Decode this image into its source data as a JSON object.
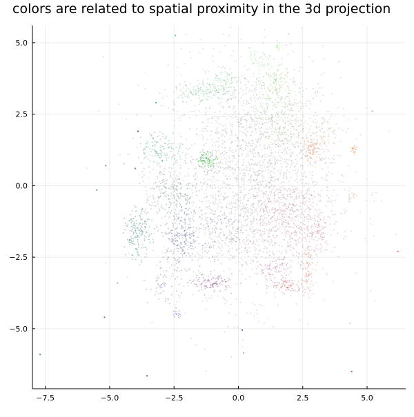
{
  "chart_data": {
    "type": "scatter",
    "title": "colors are related to spatial proximity in the 3d projection",
    "xlabel": "",
    "ylabel": "",
    "xlim": [
      -8.0,
      6.5
    ],
    "ylim": [
      -7.1,
      5.6
    ],
    "xticks": [
      -7.5,
      -5.0,
      -2.5,
      0.0,
      2.5,
      5.0
    ],
    "xtick_labels": [
      "−7.5",
      "−5.0",
      "−2.5",
      "0.0",
      "2.5",
      "5.0"
    ],
    "yticks": [
      -5.0,
      -2.5,
      0.0,
      2.5,
      5.0
    ],
    "ytick_labels": [
      "−5.0",
      "−2.5",
      "0.0",
      "2.5",
      "5.0"
    ],
    "grid": true,
    "legend": "none",
    "point_colors_note": "colored by 3d projection",
    "clusters": [
      {
        "x": 0.5,
        "y": 0.3,
        "sx": 1.7,
        "sy": 2.0,
        "n": 2200,
        "color": "#a8a2b0"
      },
      {
        "x": 1.5,
        "y": 2.4,
        "sx": 0.6,
        "sy": 0.7,
        "n": 350,
        "color": "#9fc590"
      },
      {
        "x": 1.8,
        "y": -1.2,
        "sx": 0.8,
        "sy": 0.8,
        "n": 450,
        "color": "#c7829e"
      },
      {
        "x": -2.2,
        "y": -1.8,
        "sx": 0.4,
        "sy": 0.5,
        "n": 260,
        "color": "#5c6f99"
      },
      {
        "x": -2.6,
        "y": -0.3,
        "sx": 0.5,
        "sy": 0.5,
        "n": 220,
        "color": "#6a8f7c"
      },
      {
        "x": -3.9,
        "y": -1.7,
        "sx": 0.25,
        "sy": 0.4,
        "n": 150,
        "color": "#2f7a70"
      },
      {
        "x": -3.0,
        "y": 1.3,
        "sx": 0.5,
        "sy": 0.3,
        "n": 120,
        "color": "#3fa07a"
      },
      {
        "x": -1.2,
        "y": 0.9,
        "sx": 0.2,
        "sy": 0.15,
        "n": 110,
        "color": "#39a83c"
      },
      {
        "x": -1.4,
        "y": 3.3,
        "sx": 0.6,
        "sy": 0.2,
        "n": 110,
        "color": "#63c07c"
      },
      {
        "x": -0.6,
        "y": 3.6,
        "sx": 0.3,
        "sy": 0.25,
        "n": 80,
        "color": "#7fd08a"
      },
      {
        "x": 1.4,
        "y": 3.6,
        "sx": 0.4,
        "sy": 0.3,
        "n": 90,
        "color": "#8fd66b"
      },
      {
        "x": 0.7,
        "y": 4.3,
        "sx": 0.25,
        "sy": 0.2,
        "n": 40,
        "color": "#7fe07a"
      },
      {
        "x": 1.5,
        "y": 4.85,
        "sx": 0.05,
        "sy": 0.05,
        "n": 12,
        "color": "#90ef70"
      },
      {
        "x": 2.9,
        "y": 1.3,
        "sx": 0.25,
        "sy": 0.25,
        "n": 130,
        "color": "#e39a6e"
      },
      {
        "x": 4.5,
        "y": 1.25,
        "sx": 0.08,
        "sy": 0.1,
        "n": 22,
        "color": "#e7914c"
      },
      {
        "x": 3.4,
        "y": 2.0,
        "sx": 0.3,
        "sy": 0.25,
        "n": 40,
        "color": "#c9a56e"
      },
      {
        "x": 2.7,
        "y": -2.8,
        "sx": 0.12,
        "sy": 0.6,
        "n": 90,
        "color": "#de8a76"
      },
      {
        "x": 1.9,
        "y": -3.5,
        "sx": 0.3,
        "sy": 0.12,
        "n": 60,
        "color": "#c44a4a"
      },
      {
        "x": -1.0,
        "y": -3.4,
        "sx": 0.4,
        "sy": 0.15,
        "n": 110,
        "color": "#8a4a8f"
      },
      {
        "x": 1.4,
        "y": -2.9,
        "sx": 0.3,
        "sy": 0.2,
        "n": 60,
        "color": "#b45aa0"
      },
      {
        "x": -2.9,
        "y": -3.5,
        "sx": 0.3,
        "sy": 0.3,
        "n": 50,
        "color": "#7a5cb0"
      },
      {
        "x": -2.4,
        "y": -4.5,
        "sx": 0.08,
        "sy": 0.08,
        "n": 14,
        "color": "#6a3fb0"
      },
      {
        "x": 3.1,
        "y": -1.7,
        "sx": 0.25,
        "sy": 0.3,
        "n": 60,
        "color": "#c86e90"
      },
      {
        "x": 4.4,
        "y": -0.35,
        "sx": 0.12,
        "sy": 0.1,
        "n": 16,
        "color": "#d2aa8a"
      },
      {
        "x": -0.6,
        "y": -1.6,
        "sx": 0.5,
        "sy": 0.5,
        "n": 140,
        "color": "#8a7fa8"
      }
    ],
    "outliers": [
      {
        "x": -7.7,
        "y": -5.9,
        "color": "#2a8a8a"
      },
      {
        "x": -3.55,
        "y": -6.65,
        "color": "#4a3aa0"
      },
      {
        "x": -5.2,
        "y": -4.6,
        "color": "#5a58b0"
      },
      {
        "x": -5.5,
        "y": -0.15,
        "color": "#2a9aa0"
      },
      {
        "x": -5.15,
        "y": 0.7,
        "color": "#3a9ab0"
      },
      {
        "x": 0.15,
        "y": -5.05,
        "color": "#6a4ab0"
      },
      {
        "x": 0.2,
        "y": -5.85,
        "color": "#b0a0c0"
      },
      {
        "x": 4.4,
        "y": -6.5,
        "color": "#c83a6a"
      },
      {
        "x": 6.2,
        "y": -2.3,
        "color": "#e05a30"
      },
      {
        "x": 5.2,
        "y": 2.6,
        "color": "#b0c0a0"
      },
      {
        "x": -2.45,
        "y": 5.25,
        "color": "#40d0b0"
      },
      {
        "x": 1.95,
        "y": 5.3,
        "color": "#c0e0b0"
      },
      {
        "x": -4.7,
        "y": -3.4,
        "color": "#a0a0c0"
      },
      {
        "x": -3.9,
        "y": 1.9,
        "color": "#206060"
      },
      {
        "x": -3.2,
        "y": 2.9,
        "color": "#30a070"
      },
      {
        "x": -4.0,
        "y": 0.6,
        "color": "#3080a0"
      }
    ]
  }
}
